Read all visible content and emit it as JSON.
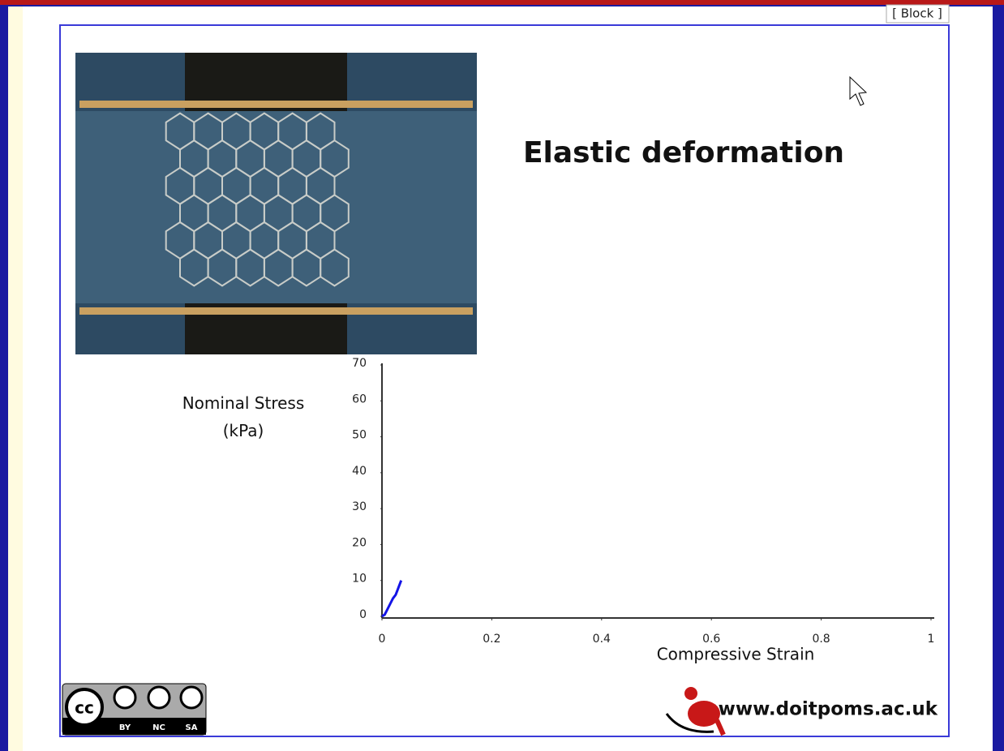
{
  "block_button": "[ Block ]",
  "video": {
    "title": "Elastic deformation"
  },
  "chart_data": {
    "type": "line",
    "x_label": "Compressive Strain",
    "y_label": "Nominal Stress\n(kPa)",
    "x": [
      0,
      0.005,
      0.01,
      0.015,
      0.02,
      0.025,
      0.03,
      0.035
    ],
    "series": [
      {
        "color": "#1414e6",
        "values": [
          0,
          0.5,
          2,
          3.5,
          5,
          6,
          8,
          10
        ]
      }
    ],
    "xlim": [
      0,
      1
    ],
    "ylim": [
      0,
      70
    ],
    "xticks": [
      0,
      0.2,
      0.4,
      0.6,
      0.8,
      1
    ],
    "yticks": [
      0,
      10,
      20,
      30,
      40,
      50,
      60,
      70
    ]
  },
  "license": {
    "badge": "cc",
    "labels": [
      "BY",
      "NC",
      "SA"
    ]
  },
  "footer": {
    "url": "www.doitpoms.ac.uk"
  }
}
